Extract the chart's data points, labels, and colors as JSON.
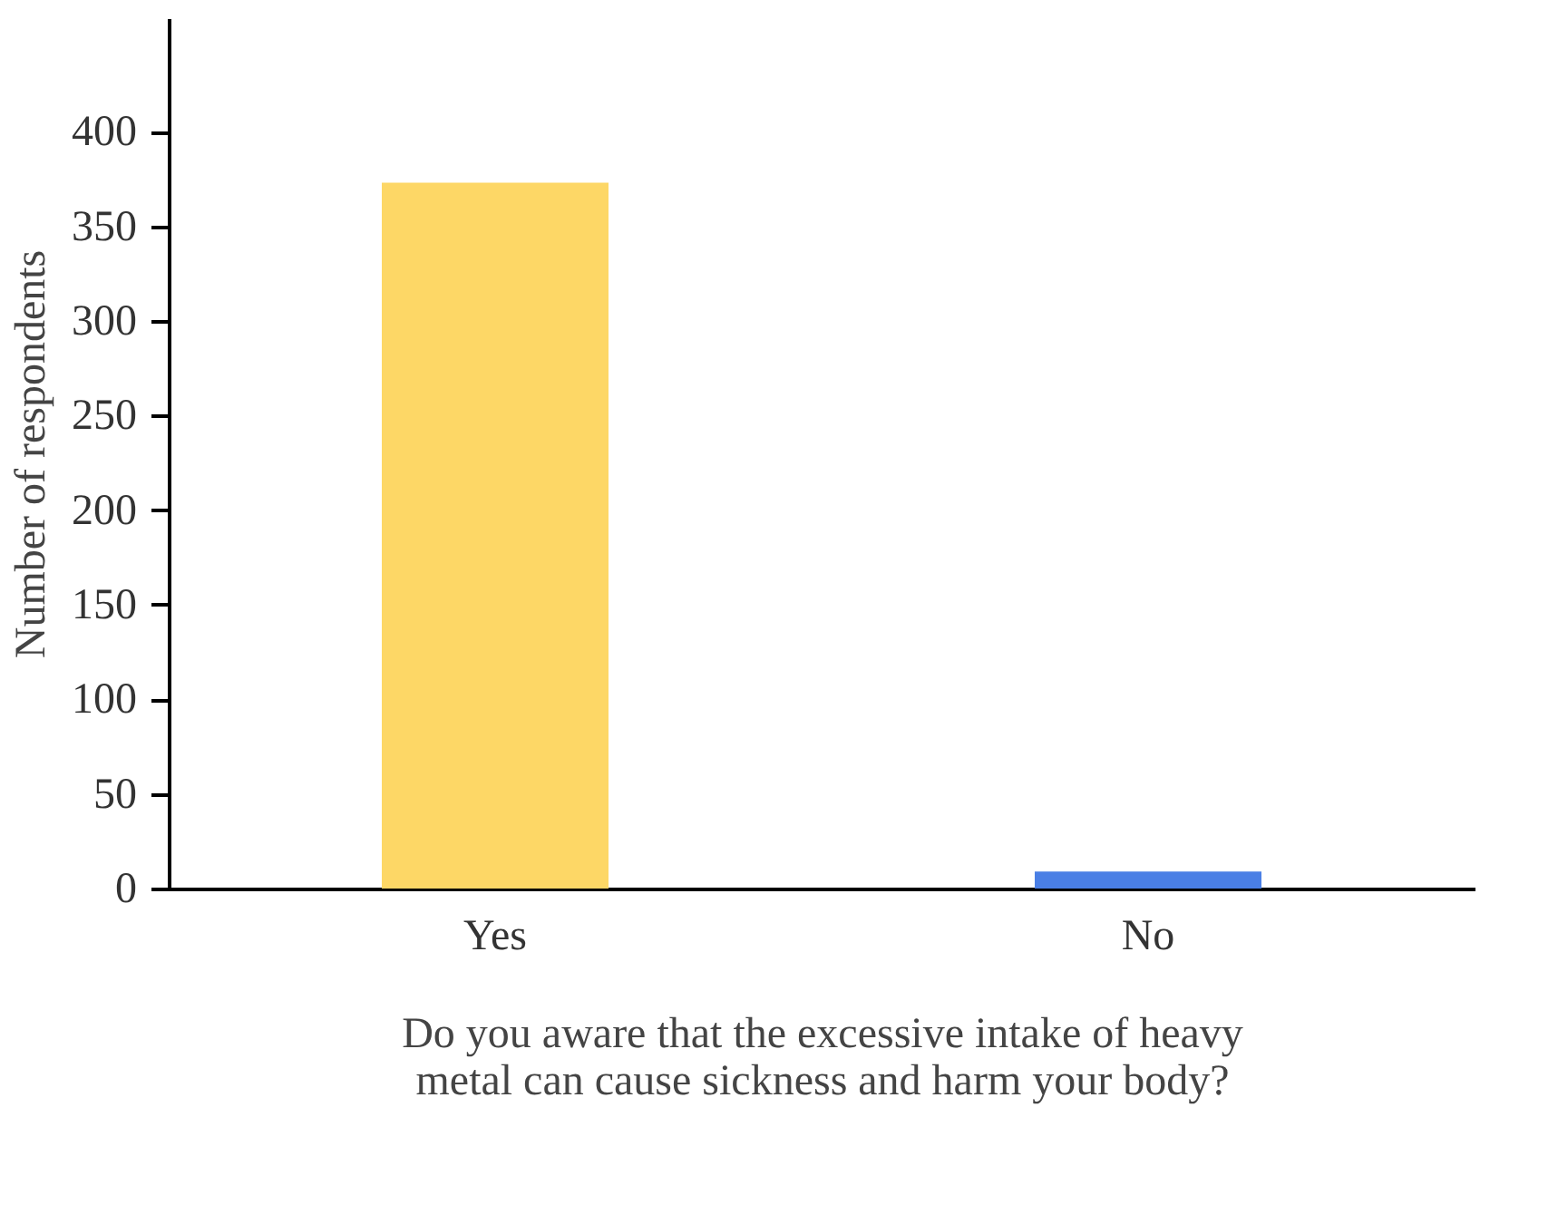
{
  "chart_data": {
    "type": "bar",
    "categories": [
      "Yes",
      "No"
    ],
    "values": [
      373,
      9
    ],
    "colors": [
      "#fdd766",
      "#4a7fe5"
    ],
    "ylabel": "Number of respondents",
    "xlabel": "Do you aware that the excessive intake of heavy\nmetal can cause sickness and harm your body?",
    "ylim": [
      0,
      460
    ],
    "yticks": [
      0,
      50,
      100,
      150,
      200,
      250,
      300,
      350,
      400
    ],
    "grid": false
  }
}
